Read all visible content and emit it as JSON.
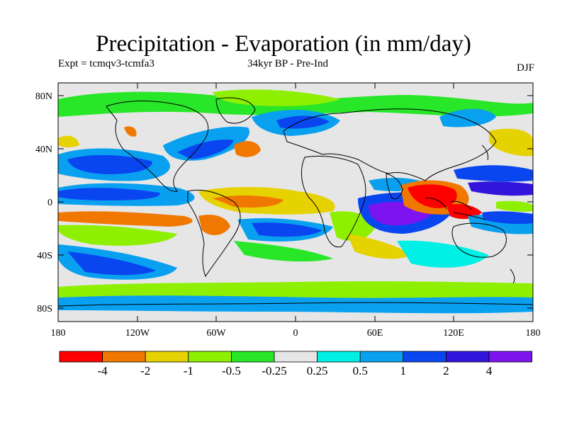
{
  "title": "Precipitation - Evaporation (in mm/day)",
  "left_label": "Expt = tcmqv3-tcmfa3",
  "center_label": "34kyr BP - Pre-Ind",
  "right_label": "DJF",
  "axes": {
    "y_ticks": [
      "80N",
      "40N",
      "0",
      "40S",
      "80S"
    ],
    "x_ticks": [
      "180",
      "120W",
      "60W",
      "0",
      "60E",
      "120E",
      "180"
    ]
  },
  "legend": {
    "labels": [
      "-4",
      "-2",
      "-1",
      "-0.5",
      "-0.25",
      "0.25",
      "0.5",
      "1",
      "2",
      "4"
    ],
    "colors": [
      "#ff0000",
      "#f07800",
      "#e6d200",
      "#8ef000",
      "#28e628",
      "#e6e6e6",
      "#00f0e6",
      "#0aa0f0",
      "#0a46f0",
      "#3214dc",
      "#7d14f0"
    ]
  },
  "colors": {
    "land_outline": "#000000",
    "background_map": "#e6e6e6"
  }
}
